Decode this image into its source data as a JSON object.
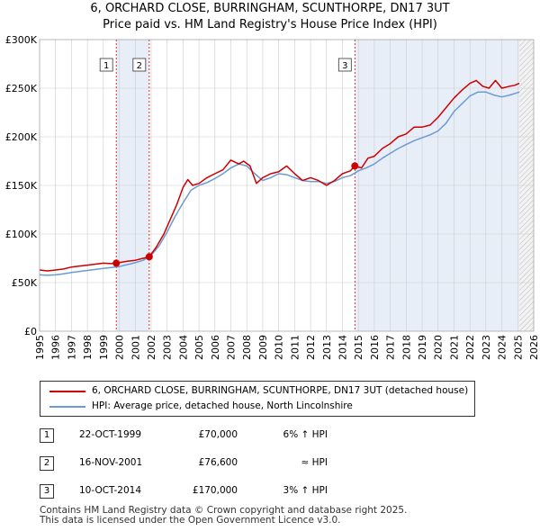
{
  "title_line1": "6, ORCHARD CLOSE, BURRINGHAM, SCUNTHORPE, DN17 3UT",
  "title_line2": "Price paid vs. HM Land Registry's House Price Index (HPI)",
  "colors": {
    "property": "#cc0000",
    "hpi": "#6b9bd2",
    "shade": "#e8eef8",
    "vline": "#cc0000",
    "grid": "#cccccc"
  },
  "chart_data": {
    "type": "line",
    "title": "Price paid vs. HM Land Registry's House Price Index (HPI)",
    "xlabel": "",
    "ylabel": "",
    "xlim": [
      1995,
      2026
    ],
    "ylim": [
      0,
      300000
    ],
    "y_ticks": [
      0,
      50000,
      100000,
      150000,
      200000,
      250000,
      300000
    ],
    "y_tick_labels": [
      "£0",
      "£50K",
      "£100K",
      "£150K",
      "£200K",
      "£250K",
      "£300K"
    ],
    "x_ticks": [
      1995,
      1996,
      1997,
      1998,
      1999,
      2000,
      2001,
      2002,
      2003,
      2004,
      2005,
      2006,
      2007,
      2008,
      2009,
      2010,
      2011,
      2012,
      2013,
      2014,
      2015,
      2016,
      2017,
      2018,
      2019,
      2020,
      2021,
      2022,
      2023,
      2024,
      2025,
      2026
    ],
    "grid": true,
    "series": [
      {
        "name": "6, ORCHARD CLOSE, BURRINGHAM, SCUNTHORPE, DN17 3UT (detached house)",
        "color": "#cc0000",
        "x": [
          1995,
          1995.5,
          1996,
          1996.5,
          1997,
          1997.5,
          1998,
          1998.5,
          1999,
          1999.5,
          1999.8,
          2000.5,
          2001,
          2001.5,
          2001.88,
          2002.3,
          2002.8,
          2003.2,
          2003.6,
          2004,
          2004.3,
          2004.6,
          2005,
          2005.5,
          2006,
          2006.5,
          2007,
          2007.5,
          2007.8,
          2008.2,
          2008.6,
          2009,
          2009.5,
          2010,
          2010.5,
          2011,
          2011.5,
          2012,
          2012.5,
          2013,
          2013.5,
          2014,
          2014.5,
          2014.78,
          2015.2,
          2015.6,
          2016,
          2016.5,
          2017,
          2017.5,
          2018,
          2018.5,
          2019,
          2019.5,
          2020,
          2020.5,
          2021,
          2021.5,
          2022,
          2022.4,
          2022.8,
          2023.2,
          2023.6,
          2024,
          2024.5,
          2024.8,
          2025.1
        ],
        "values": [
          63000,
          62000,
          63000,
          64000,
          66000,
          67000,
          68000,
          69000,
          70000,
          69500,
          70000,
          72000,
          73000,
          75000,
          76600,
          86000,
          100000,
          115000,
          130000,
          148000,
          156000,
          150000,
          152000,
          158000,
          162000,
          166000,
          176000,
          172000,
          175000,
          170000,
          152000,
          158000,
          162000,
          164000,
          170000,
          162000,
          155000,
          158000,
          155000,
          150000,
          155000,
          162000,
          165000,
          170000,
          168000,
          178000,
          180000,
          188000,
          193000,
          200000,
          203000,
          210000,
          210000,
          212000,
          220000,
          230000,
          240000,
          248000,
          255000,
          258000,
          252000,
          250000,
          258000,
          250000,
          252000,
          253000,
          255000
        ]
      },
      {
        "name": "HPI: Average price, detached house, North Lincolnshire",
        "color": "#6b9bd2",
        "x": [
          1995,
          1995.5,
          1996,
          1996.5,
          1997,
          1997.5,
          1998,
          1998.5,
          1999,
          1999.5,
          2000,
          2000.5,
          2001,
          2001.5,
          2002,
          2002.5,
          2003,
          2003.5,
          2004,
          2004.5,
          2005,
          2005.5,
          2006,
          2006.5,
          2007,
          2007.5,
          2008,
          2008.5,
          2009,
          2009.5,
          2010,
          2010.5,
          2011,
          2011.5,
          2012,
          2012.5,
          2013,
          2013.5,
          2014,
          2014.5,
          2015,
          2015.5,
          2016,
          2016.5,
          2017,
          2017.5,
          2018,
          2018.5,
          2019,
          2019.5,
          2020,
          2020.5,
          2021,
          2021.5,
          2022,
          2022.5,
          2023,
          2023.5,
          2024,
          2024.5,
          2025.1
        ],
        "values": [
          58000,
          57500,
          58000,
          59000,
          60500,
          61500,
          62500,
          63500,
          64500,
          65500,
          66500,
          68500,
          70500,
          73000,
          78000,
          88000,
          102000,
          118000,
          132000,
          145000,
          150000,
          153000,
          157000,
          162000,
          168000,
          172000,
          170000,
          162000,
          155000,
          158000,
          162000,
          161000,
          158000,
          155000,
          154000,
          154000,
          152000,
          154000,
          158000,
          160000,
          165000,
          168000,
          172000,
          178000,
          183000,
          188000,
          192000,
          196000,
          199000,
          202000,
          206000,
          214000,
          226000,
          234000,
          242000,
          246000,
          246000,
          243000,
          241000,
          243000,
          246000
        ]
      }
    ],
    "annotations": [
      {
        "label": "1",
        "x": 1999.81,
        "value": 70000
      },
      {
        "label": "2",
        "x": 2001.88,
        "value": 76600
      },
      {
        "label": "3",
        "x": 2014.78,
        "value": 170000
      }
    ],
    "shaded_ranges": [
      [
        1999.81,
        2001.88
      ],
      [
        2014.78,
        2026
      ],
      [
        2025.1,
        2026
      ]
    ]
  },
  "legend": {
    "property_label": "6, ORCHARD CLOSE, BURRINGHAM, SCUNTHORPE, DN17 3UT (detached house)",
    "hpi_label": "HPI: Average price, detached house, North Lincolnshire"
  },
  "transactions": [
    {
      "num": "1",
      "date": "22-OCT-1999",
      "price": "£70,000",
      "hpi": "6% ↑ HPI"
    },
    {
      "num": "2",
      "date": "16-NOV-2001",
      "price": "£76,600",
      "hpi": "≈ HPI"
    },
    {
      "num": "3",
      "date": "10-OCT-2014",
      "price": "£170,000",
      "hpi": "3% ↑ HPI"
    }
  ],
  "footer": {
    "line1": "Contains HM Land Registry data © Crown copyright and database right 2025.",
    "line2": "This data is licensed under the Open Government Licence v3.0."
  }
}
